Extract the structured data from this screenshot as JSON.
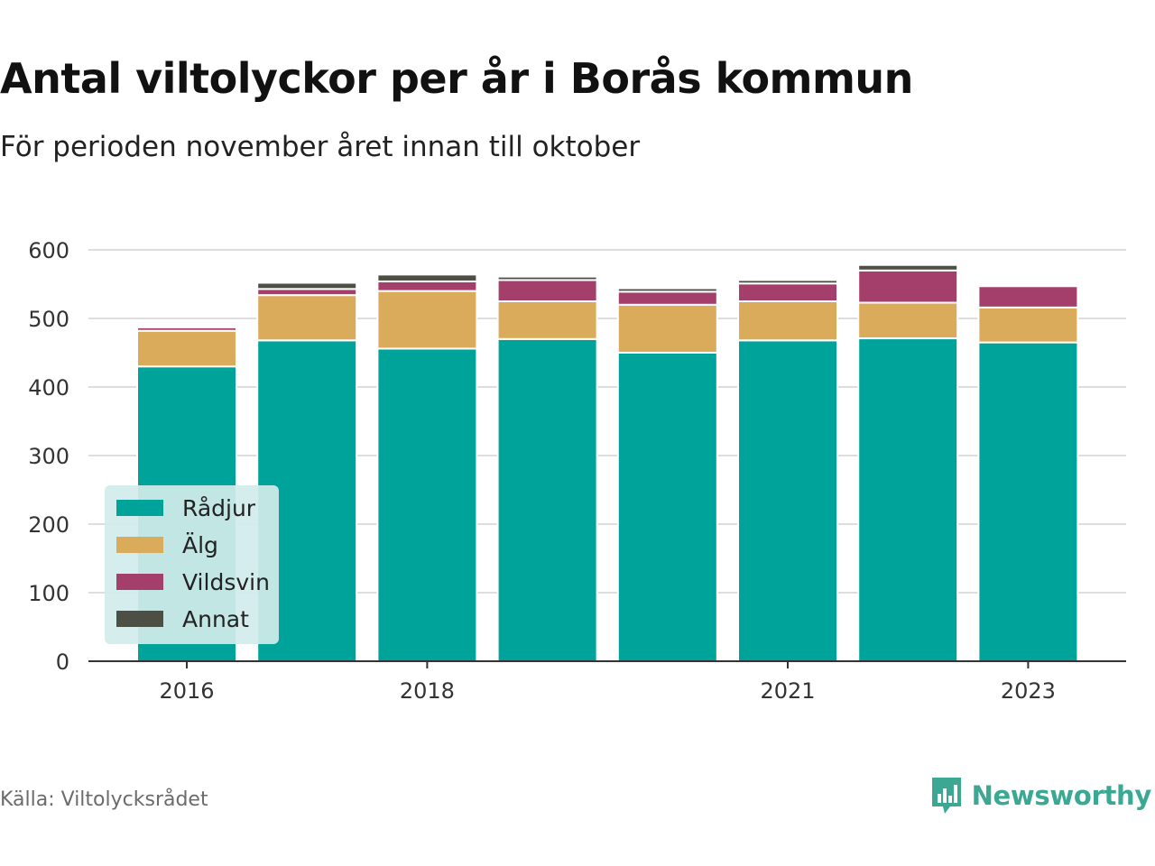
{
  "header": {
    "title": "Antal viltolyckor per år i Borås kommun",
    "subtitle": "För perioden november året innan till oktober"
  },
  "footer": {
    "source": "Källa: Viltolycksrådet",
    "brand": "Newsworthy",
    "brand_icon": "bar-chart-logo-icon"
  },
  "colors": {
    "Rådjur": "#00a39a",
    "Älg": "#d9ab5b",
    "Vildsvin": "#a33f6a",
    "Annat": "#4d4f45",
    "grid": "#dddddd",
    "axis": "#333333",
    "legend_bg": "#d1ecea",
    "brand": "#3aa893"
  },
  "chart_data": {
    "type": "bar",
    "stacked": true,
    "categories": [
      "2016",
      "2017",
      "2018",
      "2019",
      "2020",
      "2021",
      "2022",
      "2023"
    ],
    "x_tick_labels": [
      "2016",
      "2018",
      "2021",
      "2023"
    ],
    "series": [
      {
        "name": "Rådjur",
        "values": [
          430,
          468,
          456,
          470,
          450,
          468,
          471,
          465
        ]
      },
      {
        "name": "Älg",
        "values": [
          52,
          66,
          84,
          55,
          70,
          57,
          52,
          51
        ]
      },
      {
        "name": "Vildsvin",
        "values": [
          5,
          9,
          14,
          31,
          19,
          26,
          47,
          31
        ]
      },
      {
        "name": "Annat",
        "values": [
          0,
          9,
          10,
          5,
          5,
          5,
          8,
          0
        ]
      }
    ],
    "y_ticks": [
      0,
      100,
      200,
      300,
      400,
      500,
      600
    ],
    "ylim": [
      0,
      600
    ],
    "grid": true,
    "legend_position": "bottom-left, inside plot"
  }
}
